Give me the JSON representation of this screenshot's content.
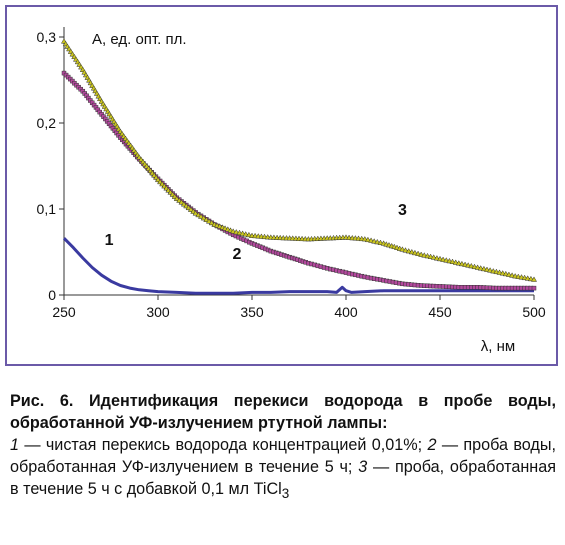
{
  "chart_data": {
    "type": "line",
    "ylabel": "A, ед. опт. пл.",
    "xlabel": "λ, нм",
    "xlim": [
      250,
      500
    ],
    "ylim": [
      0,
      0.3
    ],
    "x_ticks": [
      "250",
      "300",
      "350",
      "400",
      "450",
      "500"
    ],
    "y_ticks": [
      "0",
      "0,1",
      "0,2",
      "0,3"
    ],
    "grid": false,
    "series": [
      {
        "name": "1",
        "color": "#3a3aa0",
        "x": [
          250,
          255,
          260,
          265,
          270,
          275,
          280,
          285,
          290,
          295,
          300,
          310,
          320,
          330,
          340,
          350,
          360,
          370,
          380,
          390,
          395,
          398,
          400,
          403,
          410,
          420,
          430,
          440,
          450,
          460,
          470,
          480,
          490,
          500
        ],
        "y": [
          0.066,
          0.055,
          0.043,
          0.032,
          0.023,
          0.016,
          0.011,
          0.008,
          0.006,
          0.005,
          0.004,
          0.003,
          0.002,
          0.002,
          0.002,
          0.003,
          0.003,
          0.004,
          0.004,
          0.004,
          0.003,
          0.009,
          0.005,
          0.003,
          0.004,
          0.005,
          0.005,
          0.005,
          0.005,
          0.005,
          0.005,
          0.005,
          0.005,
          0.005
        ]
      },
      {
        "name": "2",
        "color": "#b3489d",
        "x": [
          250,
          260,
          270,
          280,
          290,
          300,
          310,
          320,
          330,
          340,
          350,
          360,
          370,
          380,
          390,
          400,
          410,
          420,
          430,
          440,
          450,
          460,
          470,
          480,
          490,
          500
        ],
        "y": [
          0.258,
          0.237,
          0.21,
          0.183,
          0.158,
          0.135,
          0.113,
          0.096,
          0.082,
          0.07,
          0.06,
          0.051,
          0.044,
          0.037,
          0.031,
          0.026,
          0.021,
          0.017,
          0.013,
          0.011,
          0.01,
          0.009,
          0.009,
          0.008,
          0.008,
          0.008
        ]
      },
      {
        "name": "3",
        "color": "#c9c41f",
        "x": [
          250,
          260,
          270,
          280,
          290,
          300,
          310,
          320,
          330,
          340,
          350,
          360,
          370,
          380,
          390,
          400,
          410,
          420,
          430,
          440,
          450,
          460,
          470,
          480,
          490,
          500
        ],
        "y": [
          0.295,
          0.262,
          0.225,
          0.19,
          0.16,
          0.134,
          0.112,
          0.095,
          0.082,
          0.074,
          0.069,
          0.067,
          0.066,
          0.065,
          0.066,
          0.067,
          0.065,
          0.06,
          0.053,
          0.047,
          0.042,
          0.037,
          0.032,
          0.027,
          0.022,
          0.018
        ]
      }
    ],
    "curve_labels": [
      {
        "text": "1",
        "x": 274,
        "y": 0.058
      },
      {
        "text": "2",
        "x": 342,
        "y": 0.042
      },
      {
        "text": "3",
        "x": 430,
        "y": 0.093
      }
    ]
  },
  "caption": {
    "title": "Рис. 6. Идентификация перекиси водорода в пробе воды, обработанной УФ-излучением ртутной лампы:",
    "item1_num": "1",
    "item1_text": " — чистая перекись водорода концентрацией 0,01%; ",
    "item2_num": "2",
    "item2_text": " — проба воды, обработанная УФ-излучением в течение 5 ч; ",
    "item3_num": "3",
    "item3_text": " — проба, обработанная в течение 5 ч с добавкой 0,1 мл TiCl",
    "item3_sub": "3"
  }
}
